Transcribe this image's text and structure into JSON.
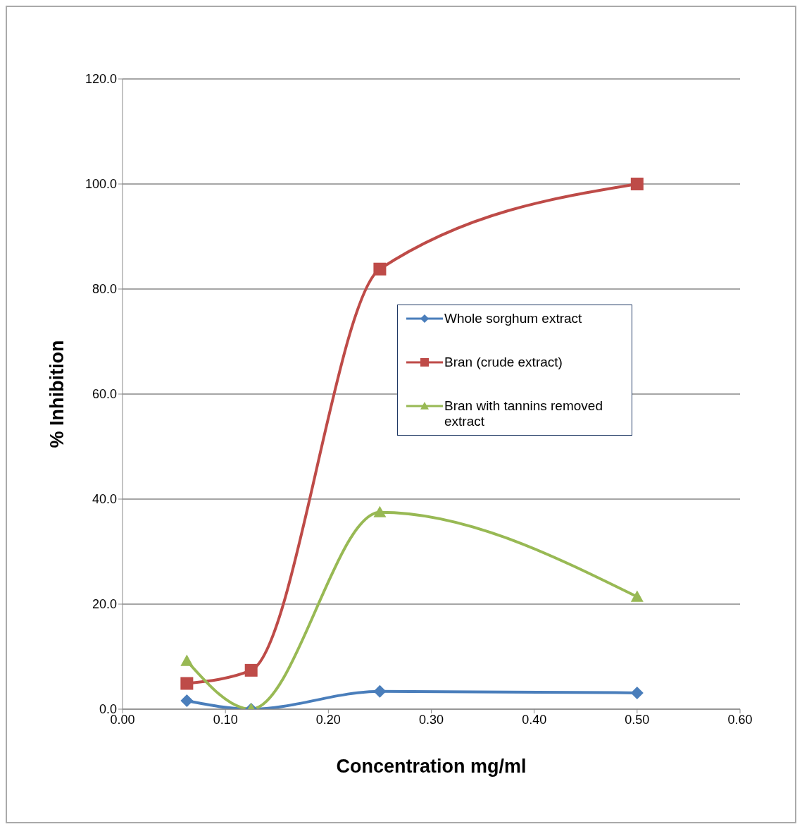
{
  "chart_data": {
    "type": "line",
    "xlabel": "Concentration mg/ml",
    "ylabel": "% Inhibition",
    "x": [
      0.0625,
      0.125,
      0.25,
      0.5
    ],
    "series": [
      {
        "name": "Whole sorghum extract",
        "color": "#4a7ebb",
        "marker": "diamond",
        "values": [
          1.6,
          0,
          3.4,
          3.1
        ]
      },
      {
        "name": "Bran (crude extract)",
        "color": "#be4b48",
        "marker": "square",
        "values": [
          4.9,
          7.4,
          83.8,
          100
        ]
      },
      {
        "name": "Bran with tannins removed extract",
        "color": "#98b954",
        "marker": "triangle",
        "values": [
          9.2,
          0,
          37.5,
          21.4
        ]
      }
    ],
    "xlim": [
      0,
      0.6
    ],
    "xticks": [
      {
        "value": 0,
        "label": "0.00"
      },
      {
        "value": 0.1,
        "label": "0.10"
      },
      {
        "value": 0.2,
        "label": "0.20"
      },
      {
        "value": 0.3,
        "label": "0.30"
      },
      {
        "value": 0.4,
        "label": "0.40"
      },
      {
        "value": 0.5,
        "label": "0.50"
      },
      {
        "value": 0.6,
        "label": "0.60"
      }
    ],
    "ylim": [
      0,
      120
    ],
    "yticks": [
      {
        "value": 0,
        "label": "0.0"
      },
      {
        "value": 20,
        "label": "20.0"
      },
      {
        "value": 40,
        "label": "40.0"
      },
      {
        "value": 60,
        "label": "60.0"
      },
      {
        "value": 80,
        "label": "80.0"
      },
      {
        "value": 100,
        "label": "100.0"
      },
      {
        "value": 120,
        "label": "120.0"
      }
    ],
    "grid": "y",
    "legend": "center"
  }
}
